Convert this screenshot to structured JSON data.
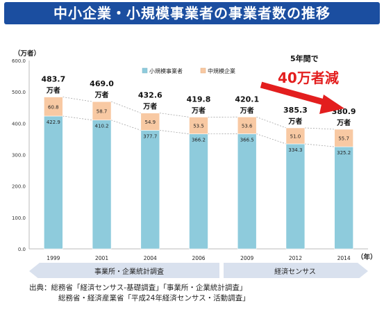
{
  "header": {
    "title": "中小企業・小規模事業者の事業者数の推移"
  },
  "colors": {
    "small": "#8ecbdc",
    "medium": "#f8c9a3",
    "banner": "#1b4ea0",
    "arrow": "#e31e1e",
    "band": "#d9e1ee"
  },
  "chart_data": {
    "type": "bar",
    "stacked": true,
    "ylabel": "（万者）",
    "xlabel": "（年）",
    "ylim": [
      0,
      600
    ],
    "yticks": [
      "0.0",
      "100.0",
      "200.0",
      "300.0",
      "400.0",
      "500.0",
      "600.0"
    ],
    "categories": [
      "1999",
      "2001",
      "2004",
      "2006",
      "2009",
      "2012",
      "2014"
    ],
    "series": [
      {
        "name": "小規模事業者",
        "values": [
          422.9,
          410.2,
          377.7,
          366.2,
          366.5,
          334.3,
          325.2
        ]
      },
      {
        "name": "中規模企業",
        "values": [
          60.8,
          58.7,
          54.9,
          53.5,
          53.6,
          51.0,
          55.7
        ]
      }
    ],
    "totals": [
      "483.7",
      "469.0",
      "432.6",
      "419.8",
      "420.1",
      "385.3",
      "380.9"
    ],
    "total_unit": "万者",
    "grid": false,
    "legend": "top-center",
    "annotation": {
      "line1": "5年間で",
      "line2": "40万者減"
    },
    "periods": [
      "事業所・企業統計調査",
      "経済センサス"
    ]
  },
  "source": {
    "line1": "出典：総務省「経済センサス-基礎調査」「事業所・企業統計調査」",
    "line2": "総務省・経済産業省「平成24年経済センサス・活動調査」"
  }
}
